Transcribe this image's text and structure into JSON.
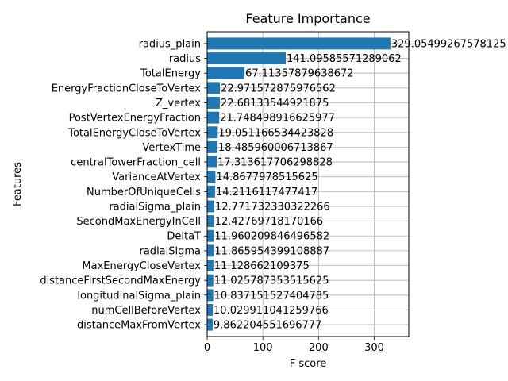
{
  "chart_data": {
    "type": "bar",
    "orientation": "horizontal",
    "title": "Feature Importance",
    "xlabel": "F score",
    "ylabel": "Features",
    "xlim": [
      0,
      362
    ],
    "xticks": [
      0,
      100,
      200,
      300
    ],
    "grid": true,
    "bar_color": "#1f77b4",
    "categories": [
      "radius_plain",
      "radius",
      "TotalEnergy",
      "EnergyFractionCloseToVertex",
      "Z_vertex",
      "PostVertexEnergyFraction",
      "TotalEnergyCloseToVertex",
      "VertexTime",
      "centralTowerFraction_cell",
      "VarianceAtVertex",
      "NumberOfUniqueCells",
      "radialSigma_plain",
      "SecondMaxEnergyInCell",
      "DeltaT",
      "radialSigma",
      "MaxEnergyCloseVertex",
      "distanceFirstSecondMaxEnergy",
      "longitudinalSigma_plain",
      "numCellBeforeVertex",
      "distanceMaxFromVertex"
    ],
    "values": [
      329.0549926757812,
      141.09585571289062,
      67.11357879638672,
      22.971572875976562,
      22.68133544921875,
      21.748498916625977,
      19.051166534423828,
      18.485960006713867,
      17.313617706298828,
      14.8677978515625,
      14.2116117477417,
      12.771732330322266,
      12.42769718170166,
      11.960209846496582,
      11.865954399108887,
      11.128662109375,
      11.025787353515625,
      10.837151527404785,
      10.029911041259766,
      9.862204551696777
    ],
    "value_labels": [
      "329.05499267578125",
      "141.09585571289062",
      "67.11357879638672",
      "22.971572875976562",
      "22.68133544921875",
      "21.748498916625977",
      "19.051166534423828",
      "18.485960006713867",
      "17.313617706298828",
      "14.8677978515625",
      "14.2116117477417",
      "12.771732330322266",
      "12.42769718170166",
      "11.960209846496582",
      "11.865954399108887",
      "11.128662109375",
      "11.025787353515625",
      "10.837151527404785",
      "10.029911041259766",
      "9.862204551696777"
    ]
  }
}
